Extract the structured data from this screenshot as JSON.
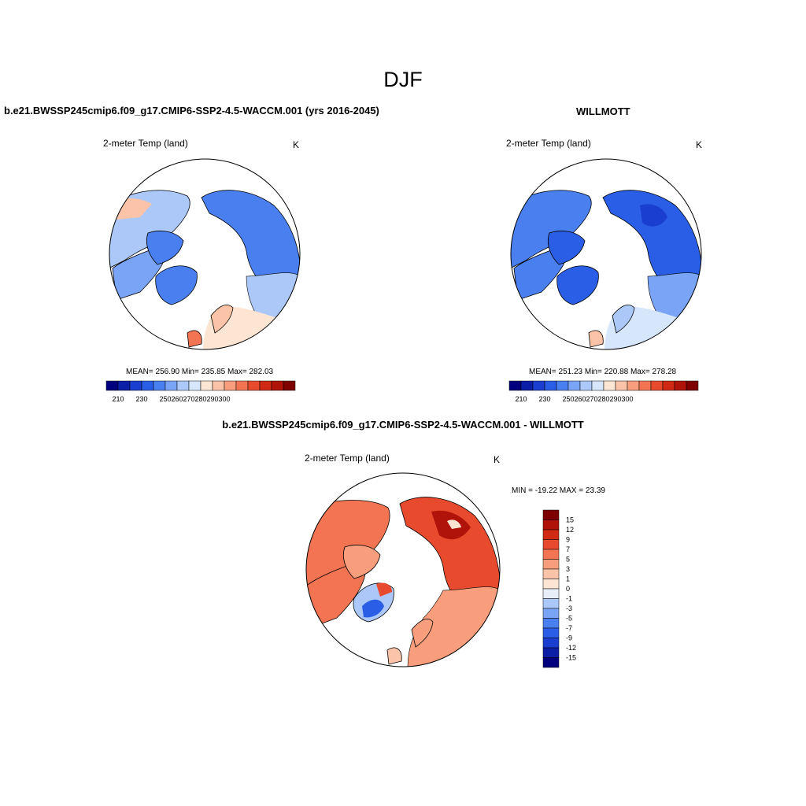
{
  "figure": {
    "season_title": "DJF",
    "left_panel": {
      "title": "b.e21.BWSSP245cmip6.f09_g17.CMIP6-SSP2-4.5-WACCM.001 (yrs 2016-2045)",
      "variable": "2-meter Temp (land)",
      "units": "K",
      "stats": "MEAN= 256.90  Min= 235.85  Max= 282.03"
    },
    "right_panel": {
      "title": "WILLMOTT",
      "variable": "2-meter Temp (land)",
      "units": "K",
      "stats": "MEAN= 251.23  Min= 220.88  Max= 278.28"
    },
    "diff_panel": {
      "title": "b.e21.BWSSP245cmip6.f09_g17.CMIP6-SSP2-4.5-WACCM.001 - WILLMOTT",
      "variable": "2-meter Temp (land)",
      "units": "K",
      "stats": "MIN = -19.22 MAX =  23.39"
    }
  },
  "colorbars": {
    "absolute": {
      "colors": [
        "#00007f",
        "#0a1ea6",
        "#1a3fd0",
        "#2b5ee6",
        "#4a7ff0",
        "#7aa4f5",
        "#abc8f8",
        "#d6e6fb",
        "#fde5d4",
        "#fbc4a8",
        "#f89e7c",
        "#f27452",
        "#e84a2e",
        "#d02a14",
        "#b0130a",
        "#7f0000"
      ],
      "tick_labels": [
        "210",
        "230",
        "250",
        "260",
        "270",
        "280",
        "290",
        "300"
      ]
    },
    "difference": {
      "colors": [
        "#00007f",
        "#0a1ea6",
        "#1a3fd0",
        "#2b5ee6",
        "#4a7ff0",
        "#7aa4f5",
        "#abc8f8",
        "#e8eef8",
        "#fde5d4",
        "#fbc4a8",
        "#f89e7c",
        "#f27452",
        "#e84a2e",
        "#d02a14",
        "#b0130a",
        "#7f0000"
      ],
      "tick_labels": [
        "15",
        "12",
        "9",
        "7",
        "5",
        "3",
        "1",
        "0",
        "-1",
        "-3",
        "-5",
        "-7",
        "-9",
        "-12",
        "-15"
      ]
    }
  }
}
